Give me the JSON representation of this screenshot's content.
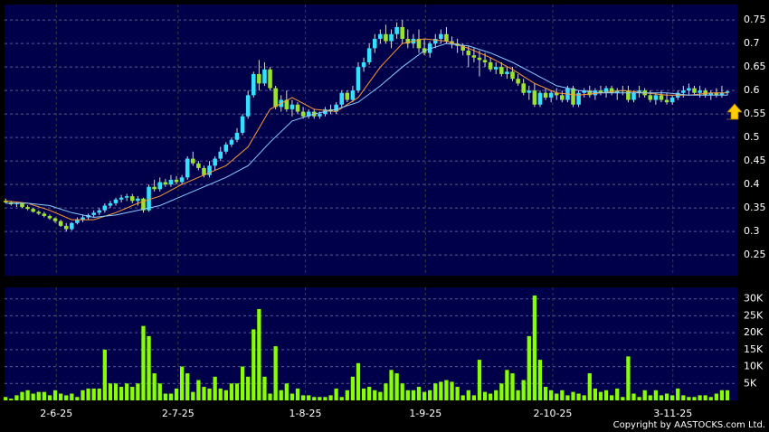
{
  "chart_data": [
    {
      "type": "candlestick",
      "up_color": "#33e0ff",
      "down_color": "#9be22d",
      "wick_color": "#d8d8d8",
      "xlim": [
        -0.2,
        132.8
      ],
      "ylim": [
        0.206,
        0.783
      ],
      "yticks": [
        0.25,
        0.3,
        0.35,
        0.4,
        0.45,
        0.5,
        0.55,
        0.6,
        0.65,
        0.7,
        0.75
      ],
      "grid": true,
      "ohlc": [
        [
          0.365,
          0.37,
          0.36,
          0.362
        ],
        [
          0.362,
          0.365,
          0.355,
          0.358
        ],
        [
          0.358,
          0.362,
          0.352,
          0.36
        ],
        [
          0.36,
          0.362,
          0.35,
          0.352
        ],
        [
          0.352,
          0.356,
          0.345,
          0.348
        ],
        [
          0.348,
          0.35,
          0.34,
          0.342
        ],
        [
          0.342,
          0.345,
          0.335,
          0.338
        ],
        [
          0.338,
          0.342,
          0.33,
          0.333
        ],
        [
          0.333,
          0.336,
          0.325,
          0.328
        ],
        [
          0.328,
          0.33,
          0.318,
          0.322
        ],
        [
          0.322,
          0.325,
          0.31,
          0.312
        ],
        [
          0.312,
          0.318,
          0.3,
          0.305
        ],
        [
          0.305,
          0.32,
          0.302,
          0.318
        ],
        [
          0.318,
          0.33,
          0.315,
          0.325
        ],
        [
          0.325,
          0.335,
          0.32,
          0.33
        ],
        [
          0.33,
          0.338,
          0.325,
          0.335
        ],
        [
          0.335,
          0.345,
          0.33,
          0.34
        ],
        [
          0.34,
          0.35,
          0.335,
          0.345
        ],
        [
          0.345,
          0.36,
          0.34,
          0.355
        ],
        [
          0.355,
          0.365,
          0.35,
          0.36
        ],
        [
          0.36,
          0.372,
          0.355,
          0.368
        ],
        [
          0.368,
          0.378,
          0.362,
          0.372
        ],
        [
          0.372,
          0.38,
          0.365,
          0.375
        ],
        [
          0.375,
          0.38,
          0.36,
          0.365
        ],
        [
          0.365,
          0.375,
          0.355,
          0.37
        ],
        [
          0.37,
          0.372,
          0.34,
          0.345
        ],
        [
          0.345,
          0.4,
          0.342,
          0.395
        ],
        [
          0.395,
          0.41,
          0.385,
          0.39
        ],
        [
          0.39,
          0.415,
          0.385,
          0.405
        ],
        [
          0.405,
          0.412,
          0.395,
          0.4
        ],
        [
          0.4,
          0.42,
          0.395,
          0.41
        ],
        [
          0.41,
          0.418,
          0.4,
          0.405
        ],
        [
          0.405,
          0.42,
          0.4,
          0.415
        ],
        [
          0.415,
          0.46,
          0.41,
          0.455
        ],
        [
          0.455,
          0.47,
          0.44,
          0.445
        ],
        [
          0.445,
          0.45,
          0.43,
          0.435
        ],
        [
          0.435,
          0.44,
          0.415,
          0.42
        ],
        [
          0.42,
          0.45,
          0.415,
          0.44
        ],
        [
          0.44,
          0.46,
          0.43,
          0.455
        ],
        [
          0.455,
          0.48,
          0.45,
          0.47
        ],
        [
          0.47,
          0.49,
          0.465,
          0.485
        ],
        [
          0.485,
          0.5,
          0.48,
          0.495
        ],
        [
          0.495,
          0.52,
          0.49,
          0.51
        ],
        [
          0.51,
          0.55,
          0.505,
          0.545
        ],
        [
          0.545,
          0.6,
          0.54,
          0.59
        ],
        [
          0.59,
          0.64,
          0.585,
          0.635
        ],
        [
          0.635,
          0.665,
          0.6,
          0.615
        ],
        [
          0.615,
          0.66,
          0.61,
          0.645
        ],
        [
          0.645,
          0.65,
          0.6,
          0.605
        ],
        [
          0.605,
          0.61,
          0.56,
          0.565
        ],
        [
          0.565,
          0.59,
          0.555,
          0.58
        ],
        [
          0.58,
          0.6,
          0.555,
          0.56
        ],
        [
          0.56,
          0.58,
          0.545,
          0.57
        ],
        [
          0.57,
          0.575,
          0.55,
          0.555
        ],
        [
          0.555,
          0.565,
          0.54,
          0.545
        ],
        [
          0.545,
          0.56,
          0.54,
          0.555
        ],
        [
          0.555,
          0.56,
          0.54,
          0.545
        ],
        [
          0.545,
          0.555,
          0.54,
          0.55
        ],
        [
          0.55,
          0.565,
          0.545,
          0.56
        ],
        [
          0.56,
          0.57,
          0.55,
          0.555
        ],
        [
          0.555,
          0.575,
          0.55,
          0.57
        ],
        [
          0.57,
          0.6,
          0.565,
          0.595
        ],
        [
          0.595,
          0.6,
          0.575,
          0.58
        ],
        [
          0.58,
          0.61,
          0.575,
          0.6
        ],
        [
          0.6,
          0.66,
          0.595,
          0.65
        ],
        [
          0.65,
          0.67,
          0.64,
          0.66
        ],
        [
          0.66,
          0.7,
          0.655,
          0.69
        ],
        [
          0.69,
          0.72,
          0.68,
          0.71
        ],
        [
          0.71,
          0.73,
          0.7,
          0.72
        ],
        [
          0.72,
          0.74,
          0.7,
          0.705
        ],
        [
          0.705,
          0.73,
          0.69,
          0.72
        ],
        [
          0.72,
          0.745,
          0.71,
          0.735
        ],
        [
          0.735,
          0.75,
          0.7,
          0.71
        ],
        [
          0.71,
          0.73,
          0.69,
          0.7
        ],
        [
          0.7,
          0.72,
          0.69,
          0.71
        ],
        [
          0.71,
          0.73,
          0.68,
          0.69
        ],
        [
          0.69,
          0.71,
          0.675,
          0.68
        ],
        [
          0.68,
          0.705,
          0.67,
          0.7
        ],
        [
          0.7,
          0.72,
          0.69,
          0.71
        ],
        [
          0.71,
          0.73,
          0.7,
          0.72
        ],
        [
          0.72,
          0.735,
          0.7,
          0.705
        ],
        [
          0.705,
          0.715,
          0.69,
          0.7
        ],
        [
          0.7,
          0.71,
          0.68,
          0.695
        ],
        [
          0.695,
          0.7,
          0.675,
          0.685
        ],
        [
          0.685,
          0.695,
          0.65,
          0.675
        ],
        [
          0.675,
          0.69,
          0.66,
          0.67
        ],
        [
          0.67,
          0.685,
          0.63,
          0.665
        ],
        [
          0.665,
          0.68,
          0.65,
          0.66
        ],
        [
          0.66,
          0.67,
          0.64,
          0.645
        ],
        [
          0.645,
          0.66,
          0.635,
          0.65
        ],
        [
          0.65,
          0.66,
          0.63,
          0.635
        ],
        [
          0.635,
          0.65,
          0.625,
          0.64
        ],
        [
          0.64,
          0.65,
          0.62,
          0.625
        ],
        [
          0.625,
          0.635,
          0.61,
          0.615
        ],
        [
          0.615,
          0.625,
          0.59,
          0.595
        ],
        [
          0.595,
          0.61,
          0.58,
          0.6
        ],
        [
          0.6,
          0.615,
          0.565,
          0.57
        ],
        [
          0.57,
          0.6,
          0.565,
          0.595
        ],
        [
          0.595,
          0.605,
          0.58,
          0.585
        ],
        [
          0.585,
          0.6,
          0.575,
          0.595
        ],
        [
          0.595,
          0.605,
          0.58,
          0.59
        ],
        [
          0.59,
          0.6,
          0.575,
          0.58
        ],
        [
          0.58,
          0.61,
          0.575,
          0.605
        ],
        [
          0.605,
          0.61,
          0.565,
          0.57
        ],
        [
          0.57,
          0.6,
          0.565,
          0.595
        ],
        [
          0.595,
          0.605,
          0.585,
          0.6
        ],
        [
          0.6,
          0.61,
          0.585,
          0.59
        ],
        [
          0.59,
          0.605,
          0.58,
          0.6
        ],
        [
          0.6,
          0.61,
          0.59,
          0.595
        ],
        [
          0.595,
          0.61,
          0.585,
          0.605
        ],
        [
          0.605,
          0.61,
          0.59,
          0.595
        ],
        [
          0.595,
          0.605,
          0.58,
          0.6
        ],
        [
          0.6,
          0.61,
          0.59,
          0.6
        ],
        [
          0.6,
          0.61,
          0.575,
          0.58
        ],
        [
          0.58,
          0.6,
          0.575,
          0.595
        ],
        [
          0.595,
          0.61,
          0.585,
          0.6
        ],
        [
          0.6,
          0.605,
          0.585,
          0.59
        ],
        [
          0.59,
          0.6,
          0.575,
          0.58
        ],
        [
          0.58,
          0.595,
          0.57,
          0.59
        ],
        [
          0.59,
          0.6,
          0.575,
          0.58
        ],
        [
          0.58,
          0.595,
          0.57,
          0.575
        ],
        [
          0.575,
          0.59,
          0.57,
          0.585
        ],
        [
          0.585,
          0.6,
          0.58,
          0.595
        ],
        [
          0.595,
          0.61,
          0.585,
          0.6
        ],
        [
          0.6,
          0.615,
          0.59,
          0.605
        ],
        [
          0.605,
          0.61,
          0.59,
          0.595
        ],
        [
          0.595,
          0.61,
          0.585,
          0.6
        ],
        [
          0.6,
          0.605,
          0.585,
          0.59
        ],
        [
          0.59,
          0.6,
          0.58,
          0.595
        ],
        [
          0.595,
          0.605,
          0.585,
          0.59
        ],
        [
          0.59,
          0.61,
          0.585,
          0.595
        ],
        [
          0.595,
          0.6,
          0.59,
          0.598
        ]
      ],
      "lines": [
        {
          "color": "#ff9933",
          "x": [
            0,
            4,
            8,
            12,
            16,
            20,
            24,
            28,
            32,
            36,
            40,
            44,
            48,
            52,
            56,
            60,
            64,
            68,
            72,
            76,
            80,
            84,
            88,
            92,
            96,
            100,
            104,
            108,
            112,
            116,
            120,
            124,
            128,
            131
          ],
          "values": [
            0.365,
            0.36,
            0.345,
            0.325,
            0.325,
            0.34,
            0.36,
            0.375,
            0.4,
            0.42,
            0.44,
            0.48,
            0.56,
            0.585,
            0.56,
            0.555,
            0.585,
            0.65,
            0.7,
            0.71,
            0.705,
            0.69,
            0.67,
            0.645,
            0.615,
            0.595,
            0.59,
            0.595,
            0.6,
            0.595,
            0.59,
            0.59,
            0.595,
            0.595
          ]
        },
        {
          "color": "#88ccff",
          "x": [
            0,
            4,
            8,
            12,
            16,
            20,
            24,
            28,
            32,
            36,
            40,
            44,
            48,
            52,
            56,
            60,
            64,
            68,
            72,
            76,
            80,
            84,
            88,
            92,
            96,
            100,
            104,
            108,
            112,
            116,
            120,
            124,
            128,
            131
          ],
          "values": [
            0.36,
            0.36,
            0.355,
            0.34,
            0.33,
            0.335,
            0.345,
            0.355,
            0.375,
            0.395,
            0.415,
            0.44,
            0.49,
            0.535,
            0.55,
            0.56,
            0.575,
            0.61,
            0.65,
            0.685,
            0.7,
            0.695,
            0.68,
            0.66,
            0.635,
            0.61,
            0.6,
            0.595,
            0.595,
            0.595,
            0.595,
            0.59,
            0.59,
            0.59
          ]
        }
      ]
    },
    {
      "type": "bar",
      "color": "#88ff00",
      "xlim": [
        -0.2,
        132.8
      ],
      "ylim": [
        0,
        33400
      ],
      "yticks": [
        {
          "value": 5000,
          "label": "5K"
        },
        {
          "value": 10000,
          "label": "10K"
        },
        {
          "value": 15000,
          "label": "15K"
        },
        {
          "value": 20000,
          "label": "20K"
        },
        {
          "value": 25000,
          "label": "25K"
        },
        {
          "value": 30000,
          "label": "30K"
        }
      ],
      "xticks": [
        {
          "value": 9.2,
          "label": "2-6-25"
        },
        {
          "value": 31.3,
          "label": "2-7-25"
        },
        {
          "value": 54.4,
          "label": "1-8-25"
        },
        {
          "value": 76.2,
          "label": "1-9-25"
        },
        {
          "value": 99.3,
          "label": "2-10-25"
        },
        {
          "value": 121.1,
          "label": "3-11-25"
        }
      ],
      "grid": true,
      "values": [
        1000,
        500,
        1500,
        2500,
        3000,
        2000,
        2500,
        2500,
        1500,
        3000,
        2000,
        1500,
        2000,
        1000,
        3000,
        3500,
        3500,
        3500,
        15000,
        5000,
        5000,
        4000,
        5000,
        4000,
        5000,
        22000,
        19000,
        8000,
        5000,
        2000,
        2000,
        3500,
        10000,
        8000,
        2500,
        6000,
        4000,
        3500,
        7000,
        3500,
        3000,
        5000,
        5000,
        10000,
        7000,
        21000,
        27000,
        7000,
        2000,
        16000,
        3000,
        5000,
        2000,
        3500,
        1500,
        1500,
        1000,
        1000,
        1000,
        1500,
        3500,
        1000,
        3000,
        7000,
        11000,
        3500,
        4000,
        3000,
        2500,
        5000,
        9000,
        8000,
        5000,
        3000,
        3000,
        4000,
        2500,
        3000,
        5000,
        5500,
        6000,
        5500,
        4000,
        1500,
        3000,
        1500,
        12000,
        2500,
        2000,
        3000,
        5000,
        9000,
        8000,
        3000,
        6000,
        19000,
        31000,
        12000,
        4000,
        3000,
        2000,
        3000,
        1500,
        2500,
        2000,
        1500,
        8000,
        3500,
        2500,
        3000,
        1500,
        3500,
        1000,
        13000,
        2000,
        1000,
        3000,
        1500,
        3000,
        1500,
        2000,
        1500,
        3500,
        1500,
        1000,
        1000,
        1500,
        1500,
        1000,
        2000,
        3000,
        3000
      ]
    }
  ],
  "footer": "Copyright by AASTOCKS.com Ltd."
}
